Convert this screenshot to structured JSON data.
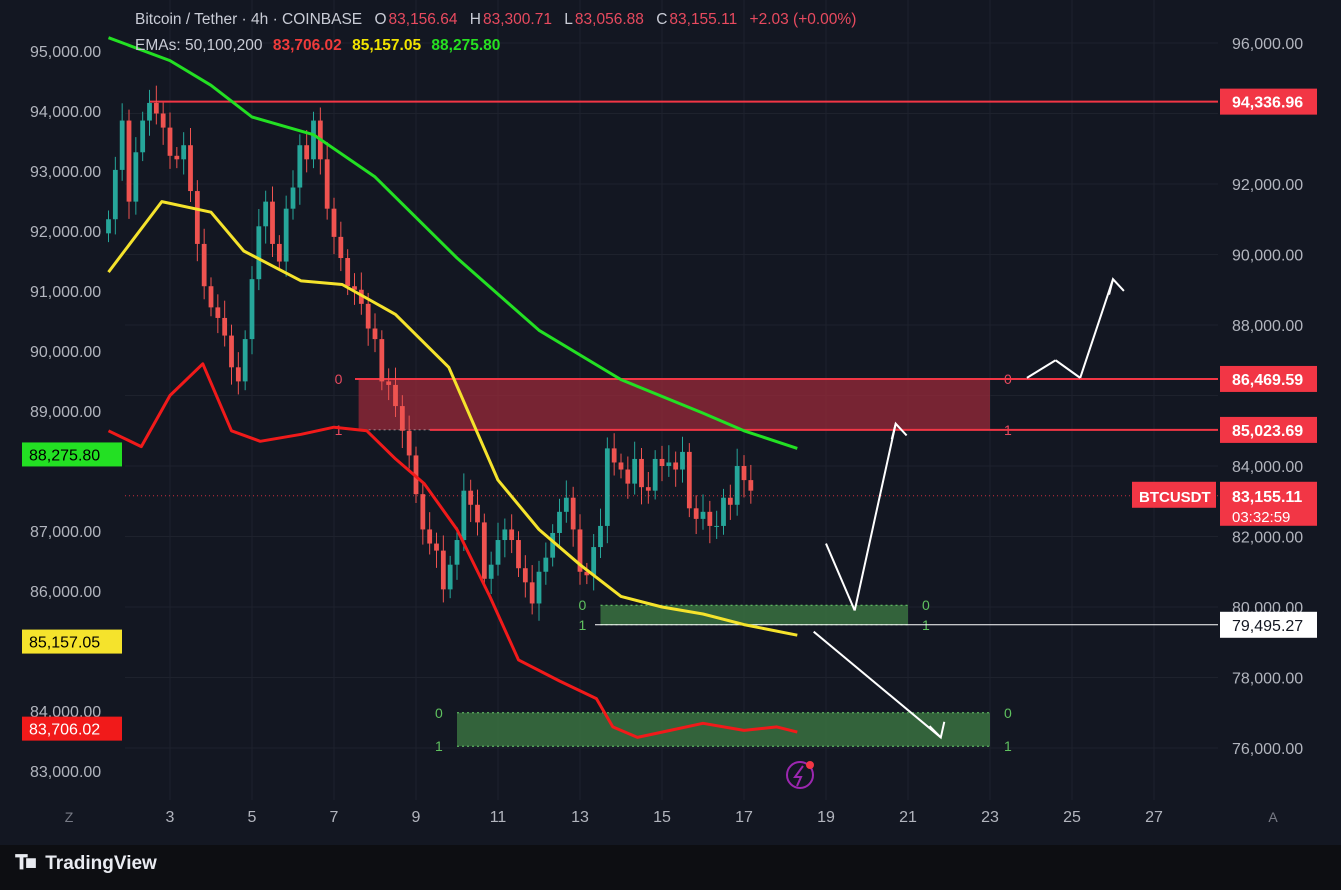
{
  "header": {
    "symbol_label": "Bitcoin / Tether · 4h · COINBASE",
    "o_key": "O",
    "o_val": "83,156.64",
    "h_key": "H",
    "h_val": "83,300.71",
    "l_key": "L",
    "l_val": "83,056.88",
    "c_key": "C",
    "c_val": "83,155.11",
    "change": "+2.03 (+0.00%)",
    "ema_label": "EMAs: 50,100,200",
    "ema50": "83,706.02",
    "ema100": "85,157.05",
    "ema200": "88,275.80"
  },
  "branding": {
    "logo_text": "TradingView"
  },
  "colors": {
    "bull": "#26a69a",
    "bear": "#ef5350",
    "ema50": "#f11a1a",
    "ema100": "#f5e32c",
    "ema200": "#23e023",
    "level": "#f23645"
  },
  "chart_data": {
    "type": "candlestick",
    "title": "Bitcoin / Tether · 4h · COINBASE",
    "x_ticks": [
      "3",
      "5",
      "7",
      "9",
      "11",
      "13",
      "15",
      "17",
      "19",
      "21",
      "23",
      "25",
      "27"
    ],
    "x_tick_days": [
      3,
      5,
      7,
      9,
      11,
      13,
      15,
      17,
      19,
      21,
      23,
      25,
      27
    ],
    "x_range_days": [
      1.1,
      29
    ],
    "left_axis": {
      "ticks": [
        "95,000.00",
        "94,000.00",
        "93,000.00",
        "92,000.00",
        "91,000.00",
        "90,000.00",
        "89,000.00",
        "87,000.00",
        "86,000.00",
        "84,000.00",
        "83,000.00"
      ],
      "tick_values": [
        95000,
        94000,
        93000,
        92000,
        91000,
        90000,
        89000,
        87000,
        86000,
        84000,
        83000
      ],
      "range": [
        82500,
        95550
      ],
      "labels": [
        {
          "text": "88,275.80",
          "value": 88275.8,
          "color": "#23e023"
        },
        {
          "text": "85,157.05",
          "value": 85157.05,
          "color": "#f5e32c"
        },
        {
          "text": "83,706.02",
          "value": 83706.02,
          "color": "#f11a1a"
        }
      ]
    },
    "right_axis": {
      "ticks": [
        "96,000.00",
        "92,000.00",
        "90,000.00",
        "88,000.00",
        "84,000.00",
        "82,000.00",
        "80,000.00",
        "78,000.00",
        "76,000.00"
      ],
      "tick_values": [
        96000,
        92000,
        90000,
        88000,
        84000,
        82000,
        80000,
        78000,
        76000
      ],
      "range": [
        74500,
        96600
      ],
      "labels": [
        {
          "text": "94,336.96",
          "value": 94336.96,
          "style": "level"
        },
        {
          "text": "86,469.59",
          "value": 86469.59,
          "style": "level"
        },
        {
          "text": "85,023.69",
          "value": 85023.69,
          "style": "level"
        },
        {
          "text": "83,155.11",
          "value": 83155.11,
          "style": "price"
        },
        {
          "text": "03:32:59",
          "value": null,
          "style": "countdown"
        },
        {
          "text": "79,495.27",
          "value": 79495.27,
          "style": "white"
        }
      ],
      "symbol_tag": "BTCUSDT"
    },
    "horizontal_levels": [
      94336.96,
      86469.59,
      85023.69
    ],
    "current_price": 83155.11,
    "zones": [
      {
        "kind": "supply",
        "top": 86469.59,
        "bottom": 85023.69,
        "from_day": 7.6,
        "to_day": 23,
        "top_label": "0",
        "bottom_label": "1"
      },
      {
        "kind": "demand",
        "top": 80050,
        "bottom": 79495.27,
        "from_day": 13.5,
        "to_day": 21,
        "top_label": "0",
        "bottom_label": "1"
      },
      {
        "kind": "demand",
        "top": 77000,
        "bottom": 76050,
        "from_day": 10,
        "to_day": 23,
        "top_label": "0",
        "bottom_label": "1"
      }
    ],
    "candles_start_day": 1.5,
    "candles_per_day": 6,
    "candle_close": [
      91000,
      92400,
      93800,
      91500,
      92900,
      93800,
      94300,
      94000,
      93600,
      92800,
      92700,
      93100,
      91800,
      90300,
      89100,
      88500,
      88200,
      87700,
      86800,
      86400,
      87600,
      89300,
      90800,
      91500,
      90300,
      89800,
      91300,
      91900,
      93100,
      92700,
      93800,
      92700,
      91300,
      90500,
      89900,
      89100,
      89000,
      88600,
      87900,
      87600,
      86400,
      86300,
      85700,
      85000,
      84300,
      83200,
      82200,
      81800,
      81600,
      80500,
      81200,
      81900,
      83300,
      82900,
      82400,
      80800,
      81200,
      81900,
      82200,
      81900,
      81100,
      80700,
      80100,
      81000,
      81400,
      82100,
      82700,
      83100,
      82200,
      81000,
      80900,
      81700,
      82300,
      84500,
      84100,
      83900,
      83500,
      84200,
      83400,
      83300,
      84200,
      84000,
      84100,
      83900,
      84400,
      82800,
      82500,
      82700,
      82300,
      82300,
      83100,
      82900,
      84000,
      83600,
      83300
    ]
  },
  "emas": {
    "ema200_days": [
      1.5,
      3.0,
      4.0,
      5.0,
      6.5,
      8.0,
      10.0,
      12.0,
      14.0,
      16.0,
      17.0,
      18.3
    ],
    "ema200_vals": [
      96150,
      95500,
      94800,
      93900,
      93400,
      92200,
      89900,
      87850,
      86450,
      85500,
      85000,
      84500
    ],
    "ema100_days": [
      1.5,
      2.8,
      4.0,
      4.8,
      6.2,
      7.2,
      8.5,
      9.8,
      11.0,
      12.0,
      13.0,
      14.0,
      15.0,
      16.0,
      17.0,
      18.3
    ],
    "ema100_vals": [
      89500,
      91500,
      91200,
      90100,
      89250,
      89150,
      88300,
      86800,
      83600,
      82200,
      81200,
      80300,
      80000,
      79800,
      79500,
      79200
    ],
    "ema50_days": [
      1.5,
      2.3,
      3.0,
      3.8,
      4.5,
      5.2,
      6.2,
      7.0,
      7.8,
      8.5,
      9.2,
      10.0,
      10.8,
      11.5,
      12.5,
      13.4,
      13.8,
      14.4,
      15.2,
      16.0,
      17.0,
      17.8,
      18.3
    ],
    "ema50_vals": [
      85000,
      84550,
      86000,
      86900,
      85000,
      84700,
      84900,
      85100,
      85000,
      84200,
      83500,
      82200,
      80300,
      78500,
      77900,
      77400,
      76600,
      76300,
      76500,
      76700,
      76500,
      76600,
      76450
    ]
  },
  "annotations": [
    {
      "from_day": 19.0,
      "from_val": 81800,
      "to_day": 19.7,
      "to_val": 79900
    },
    {
      "from_day": 19.7,
      "from_val": 79900,
      "to_day": 20.7,
      "to_val": 85200
    },
    {
      "from_day": 18.7,
      "from_val": 79300,
      "to_day": 21.8,
      "to_val": 76300
    },
    {
      "from_day": 23.9,
      "from_val": 86500,
      "to_day": 24.6,
      "to_val": 87000
    },
    {
      "from_day": 24.6,
      "from_val": 87000,
      "to_day": 25.2,
      "to_val": 86500
    },
    {
      "from_day": 25.2,
      "from_val": 86500,
      "to_day": 26.0,
      "to_val": 89300
    }
  ]
}
